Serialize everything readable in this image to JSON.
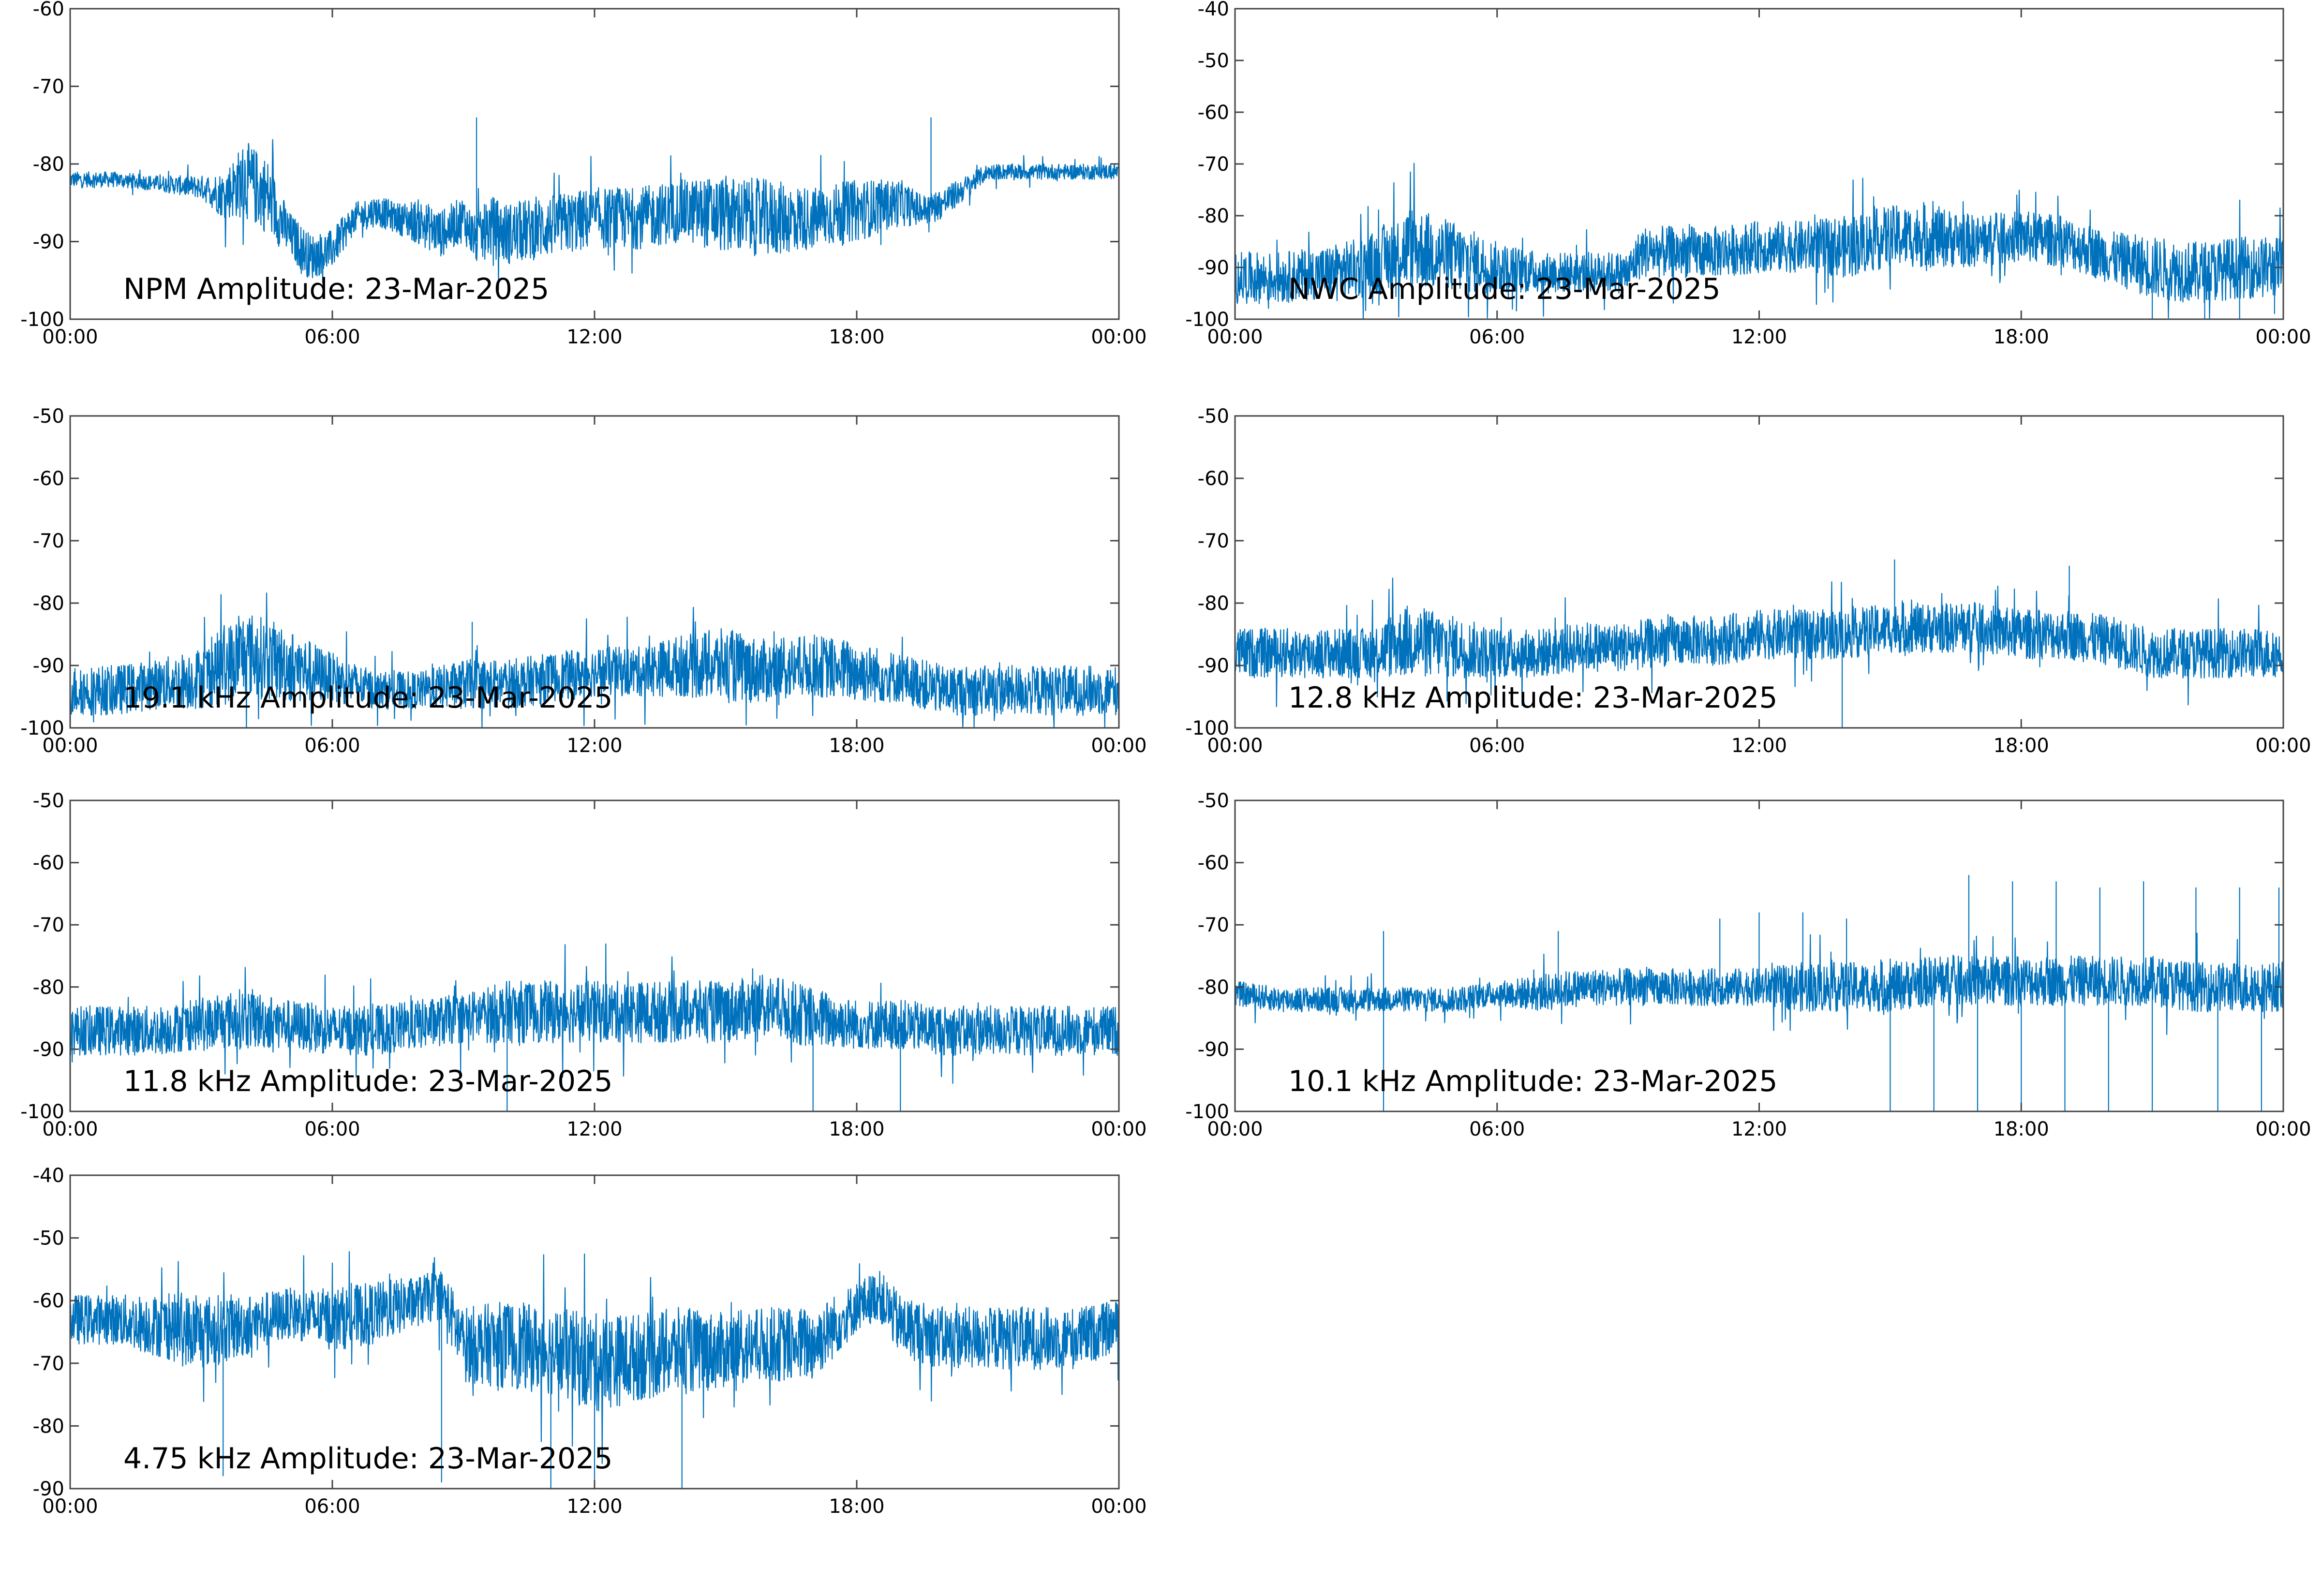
{
  "colors": {
    "trace": "#0072BD",
    "axes": "#444444",
    "background": "#ffffff"
  },
  "chart_data": [
    {
      "type": "line",
      "title": "NPM Amplitude: 23-Mar-2025",
      "xlabel": "",
      "ylabel": "",
      "xticks": [
        "00:00",
        "06:00",
        "12:00",
        "18:00",
        "00:00"
      ],
      "xlim_hours": [
        0,
        24
      ],
      "ylim": [
        -100,
        -60
      ],
      "yticks": [
        -100,
        -90,
        -80,
        -70,
        -60
      ],
      "grid": false,
      "series": [
        {
          "x": [
            0,
            1,
            2,
            3,
            3.5,
            4,
            4.5,
            5,
            5.5,
            6,
            6.5,
            7,
            7.5,
            8,
            8.5,
            9,
            9.3,
            9.6,
            10,
            11,
            12,
            13,
            14,
            15,
            16,
            17,
            18,
            19,
            19.5,
            20,
            20.5,
            21,
            22,
            23,
            24
          ],
          "y": [
            -82,
            -82,
            -82.5,
            -83,
            -84,
            -82,
            -84,
            -89,
            -92,
            -91,
            -87,
            -86,
            -87,
            -87.5,
            -89,
            -87,
            -90,
            -88,
            -89,
            -88,
            -87,
            -87,
            -86,
            -86.5,
            -87,
            -87,
            -86,
            -85,
            -86,
            -85,
            -83,
            -81,
            -81,
            -81,
            -81
          ],
          "spread": [
            1,
            1,
            1,
            1.5,
            3,
            5,
            5,
            3,
            3,
            2.5,
            2,
            2,
            2,
            3,
            3,
            3,
            3,
            4,
            4,
            4,
            4,
            4,
            4,
            5,
            5,
            4,
            4,
            3,
            2,
            2,
            1.5,
            1,
            1,
            1,
            1
          ]
        }
      ],
      "spikes": [
        [
          9.3,
          -74
        ],
        [
          19.7,
          -74
        ]
      ]
    },
    {
      "type": "line",
      "title": "NWC Amplitude: 23-Mar-2025",
      "xlabel": "",
      "ylabel": "",
      "xticks": [
        "00:00",
        "06:00",
        "12:00",
        "18:00",
        "00:00"
      ],
      "xlim_hours": [
        0,
        24
      ],
      "ylim": [
        -100,
        -40
      ],
      "yticks": [
        -100,
        -90,
        -80,
        -70,
        -60,
        -50,
        -40
      ],
      "grid": false,
      "series": [
        {
          "x": [
            0,
            1,
            2,
            3,
            4,
            5,
            6,
            7,
            8,
            9,
            9.3,
            10,
            11,
            12,
            13,
            14,
            15,
            16,
            17,
            18,
            19,
            20,
            21,
            22,
            23,
            24
          ],
          "y": [
            -92,
            -92,
            -91,
            -90,
            -86,
            -88,
            -90,
            -91,
            -91,
            -91,
            -87,
            -87,
            -87,
            -86,
            -86,
            -86,
            -84,
            -84,
            -85,
            -84,
            -85,
            -88,
            -90,
            -91,
            -90,
            -90
          ],
          "spread": [
            5,
            5,
            5,
            6,
            8,
            7,
            5,
            4,
            4,
            4,
            5,
            5,
            5,
            5,
            5,
            6,
            6,
            6,
            5,
            5,
            5,
            5,
            6,
            6,
            6,
            6
          ]
        }
      ],
      "spikes": [
        [
          21,
          -100
        ],
        [
          22.2,
          -100
        ],
        [
          23,
          -100
        ],
        [
          23.8,
          -99
        ]
      ]
    },
    {
      "type": "line",
      "title": "19.1 kHz Amplitude: 23-Mar-2025",
      "xlabel": "",
      "ylabel": "",
      "xticks": [
        "00:00",
        "06:00",
        "12:00",
        "18:00",
        "00:00"
      ],
      "xlim_hours": [
        0,
        24
      ],
      "ylim": [
        -100,
        -50
      ],
      "yticks": [
        -100,
        -90,
        -80,
        -70,
        -60,
        -50
      ],
      "grid": false,
      "series": [
        {
          "x": [
            0,
            1,
            2,
            3,
            4,
            5,
            6,
            7,
            8,
            9,
            10,
            11,
            12,
            13,
            14,
            15,
            16,
            17,
            18,
            19,
            20,
            21,
            22,
            23,
            24
          ],
          "y": [
            -94,
            -94,
            -93,
            -92,
            -88,
            -90,
            -92,
            -94,
            -94,
            -93,
            -93,
            -92,
            -91,
            -91,
            -90,
            -90,
            -91,
            -90,
            -91,
            -92,
            -94,
            -94,
            -94,
            -94,
            -94
          ],
          "spread": [
            4,
            4,
            4,
            5,
            7,
            6,
            4,
            3,
            3,
            4,
            4,
            4,
            4,
            4,
            5,
            6,
            5,
            5,
            5,
            4,
            4,
            4,
            4,
            4,
            4
          ]
        }
      ],
      "spikes": [
        [
          9.2,
          -83
        ]
      ]
    },
    {
      "type": "line",
      "title": "12.8 kHz Amplitude: 23-Mar-2025",
      "xlabel": "",
      "ylabel": "",
      "xticks": [
        "00:00",
        "06:00",
        "12:00",
        "18:00",
        "00:00"
      ],
      "xlim_hours": [
        0,
        24
      ],
      "ylim": [
        -100,
        -50
      ],
      "yticks": [
        -100,
        -90,
        -80,
        -70,
        -60,
        -50
      ],
      "grid": false,
      "series": [
        {
          "x": [
            0,
            1,
            2,
            3,
            4,
            5,
            6,
            7,
            8,
            9,
            10,
            11,
            12,
            13,
            14,
            15,
            16,
            17,
            18,
            19,
            20,
            21,
            22,
            23,
            24
          ],
          "y": [
            -88,
            -88,
            -88,
            -88,
            -86,
            -87,
            -88,
            -88,
            -87,
            -87,
            -86,
            -86,
            -85,
            -85,
            -85,
            -84,
            -84,
            -84,
            -85,
            -85,
            -86,
            -88,
            -88,
            -88,
            -88
          ],
          "spread": [
            4,
            4,
            4,
            4,
            6,
            5,
            4,
            4,
            4,
            4,
            4,
            4,
            4,
            4,
            4,
            4,
            4,
            4,
            4,
            4,
            4,
            4,
            4,
            4,
            4
          ]
        }
      ],
      "spikes": [
        [
          15.1,
          -73
        ],
        [
          19.1,
          -74
        ],
        [
          13.9,
          -100
        ]
      ]
    },
    {
      "type": "line",
      "title": "11.8 kHz Amplitude: 23-Mar-2025",
      "xlabel": "",
      "ylabel": "",
      "xticks": [
        "00:00",
        "06:00",
        "12:00",
        "18:00",
        "00:00"
      ],
      "xlim_hours": [
        0,
        24
      ],
      "ylim": [
        -100,
        -50
      ],
      "yticks": [
        -100,
        -90,
        -80,
        -70,
        -60,
        -50
      ],
      "grid": false,
      "series": [
        {
          "x": [
            0,
            1,
            2,
            3,
            4,
            5,
            6,
            7,
            8,
            9,
            10,
            11,
            12,
            13,
            14,
            15,
            16,
            17,
            18,
            19,
            20,
            21,
            22,
            23,
            24
          ],
          "y": [
            -87,
            -87,
            -87,
            -86,
            -85,
            -86,
            -87,
            -87,
            -86,
            -85,
            -84,
            -84,
            -84,
            -84,
            -84,
            -84,
            -83,
            -85,
            -86,
            -86,
            -87,
            -87,
            -87,
            -87,
            -87
          ],
          "spread": [
            4,
            4,
            4,
            4,
            5,
            4,
            4,
            4,
            4,
            4,
            5,
            5,
            5,
            5,
            5,
            5,
            5,
            5,
            4,
            4,
            4,
            4,
            4,
            4,
            4
          ]
        }
      ],
      "spikes": [
        [
          10,
          -100
        ],
        [
          17,
          -100
        ],
        [
          19,
          -100
        ]
      ]
    },
    {
      "type": "line",
      "title": "10.1 kHz Amplitude: 23-Mar-2025",
      "xlabel": "",
      "ylabel": "",
      "xticks": [
        "00:00",
        "06:00",
        "12:00",
        "18:00",
        "00:00"
      ],
      "xlim_hours": [
        0,
        24
      ],
      "ylim": [
        -100,
        -50
      ],
      "yticks": [
        -100,
        -90,
        -80,
        -70,
        -60,
        -50
      ],
      "grid": false,
      "series": [
        {
          "x": [
            0,
            1,
            2,
            3,
            4,
            5,
            6,
            7,
            8,
            9,
            10,
            11,
            12,
            13,
            14,
            15,
            16,
            17,
            18,
            19,
            20,
            21,
            22,
            23,
            24
          ],
          "y": [
            -81,
            -82,
            -82,
            -82,
            -82,
            -82,
            -81,
            -81,
            -80,
            -80,
            -80,
            -80,
            -80,
            -80,
            -80,
            -80,
            -79,
            -79,
            -79,
            -79,
            -79,
            -79,
            -80,
            -80,
            -80
          ],
          "spread": [
            2,
            2,
            2,
            2,
            2,
            2,
            2,
            3,
            3,
            3,
            3,
            3,
            3,
            4,
            4,
            4,
            4,
            4,
            4,
            4,
            4,
            4,
            4,
            4,
            4
          ]
        }
      ],
      "spikes": [
        [
          3.4,
          -71
        ],
        [
          3.4,
          -100
        ],
        [
          7.4,
          -71
        ],
        [
          11.1,
          -69
        ],
        [
          12,
          -68
        ],
        [
          13,
          -68
        ],
        [
          14,
          -69
        ],
        [
          15,
          -100
        ],
        [
          16,
          -100
        ],
        [
          16.8,
          -62
        ],
        [
          17,
          -100
        ],
        [
          17.8,
          -63
        ],
        [
          18,
          -100
        ],
        [
          18.8,
          -63
        ],
        [
          19,
          -100
        ],
        [
          19.8,
          -64
        ],
        [
          20,
          -100
        ],
        [
          20.8,
          -63
        ],
        [
          21,
          -100
        ],
        [
          22,
          -64
        ],
        [
          22.5,
          -100
        ],
        [
          23,
          -64
        ],
        [
          23.5,
          -100
        ],
        [
          23.9,
          -64
        ]
      ]
    },
    {
      "type": "line",
      "title": "4.75 kHz Amplitude: 23-Mar-2025",
      "xlabel": "",
      "ylabel": "",
      "xticks": [
        "00:00",
        "06:00",
        "12:00",
        "18:00",
        "00:00"
      ],
      "xlim_hours": [
        0,
        24
      ],
      "ylim": [
        -90,
        -40
      ],
      "yticks": [
        -90,
        -80,
        -70,
        -60,
        -50,
        -40
      ],
      "grid": false,
      "series": [
        {
          "x": [
            0,
            1,
            2,
            3,
            4,
            5,
            6,
            7,
            8,
            8.5,
            9,
            10,
            11,
            12,
            13,
            14,
            15,
            16,
            17,
            18,
            18.5,
            19,
            20,
            21,
            22,
            23,
            24
          ],
          "y": [
            -63,
            -63,
            -64,
            -65,
            -64,
            -62,
            -63,
            -62,
            -60,
            -59,
            -67,
            -67,
            -68,
            -70,
            -69,
            -68,
            -68,
            -67,
            -67,
            -61,
            -59,
            -64,
            -66,
            -66,
            -66,
            -66,
            -64
          ],
          "spread": [
            4,
            4,
            5,
            6,
            5,
            4,
            5,
            5,
            4,
            4,
            6,
            7,
            7,
            8,
            7,
            7,
            6,
            6,
            6,
            4,
            4,
            5,
            5,
            5,
            5,
            5,
            4
          ]
        }
      ],
      "spikes": [
        [
          3.5,
          -88
        ],
        [
          8.5,
          -89
        ],
        [
          11,
          -90
        ],
        [
          12,
          -90
        ],
        [
          14,
          -90
        ]
      ]
    }
  ]
}
